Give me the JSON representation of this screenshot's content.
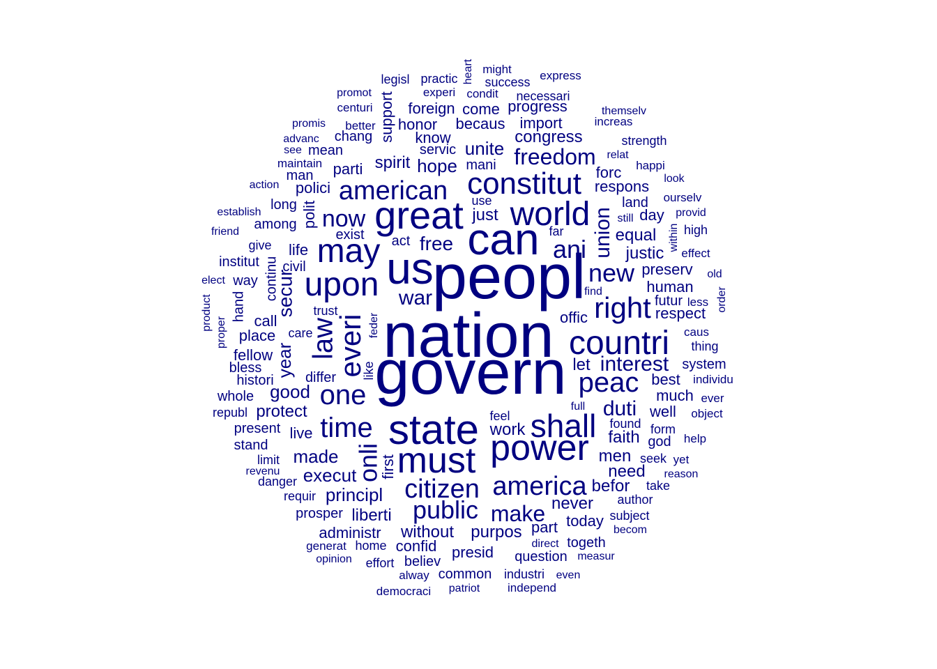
{
  "color": "#000080",
  "words": [
    {
      "text": "nation",
      "size": 90
    },
    {
      "text": "govern",
      "size": 90
    },
    {
      "text": "peopl",
      "size": 90
    },
    {
      "text": "us",
      "size": 64
    },
    {
      "text": "can",
      "size": 64
    },
    {
      "text": "state",
      "size": 60
    },
    {
      "text": "great",
      "size": 56
    },
    {
      "text": "must",
      "size": 52
    },
    {
      "text": "power",
      "size": 52
    },
    {
      "text": "world",
      "size": 48
    },
    {
      "text": "may",
      "size": 48
    },
    {
      "text": "upon",
      "size": 48
    },
    {
      "text": "countri",
      "size": 48
    },
    {
      "text": "shall",
      "size": 46
    },
    {
      "text": "constitut",
      "size": 44
    },
    {
      "text": "everi",
      "size": 42
    },
    {
      "text": "right",
      "size": 42
    },
    {
      "text": "law",
      "size": 40
    },
    {
      "text": "time",
      "size": 40
    },
    {
      "text": "one",
      "size": 40
    },
    {
      "text": "peac",
      "size": 40
    },
    {
      "text": "american",
      "size": 38
    },
    {
      "text": "citizen",
      "size": 38
    },
    {
      "text": "america",
      "size": 38
    },
    {
      "text": "onli",
      "size": 36
    },
    {
      "text": "ani",
      "size": 36
    },
    {
      "text": "public",
      "size": 36
    },
    {
      "text": "new",
      "size": 36
    },
    {
      "text": "now",
      "size": 34
    },
    {
      "text": "make",
      "size": 32
    },
    {
      "text": "freedom",
      "size": 32
    },
    {
      "text": "union",
      "size": 30
    },
    {
      "text": "duti",
      "size": 30
    },
    {
      "text": "war",
      "size": 30
    },
    {
      "text": "interest",
      "size": 30
    },
    {
      "text": "free",
      "size": 28
    },
    {
      "text": "secur",
      "size": 28
    },
    {
      "text": "year",
      "size": 26
    },
    {
      "text": "unite",
      "size": 26
    },
    {
      "text": "hope",
      "size": 26
    },
    {
      "text": "made",
      "size": 26
    },
    {
      "text": "execut",
      "size": 26
    },
    {
      "text": "principl",
      "size": 26
    },
    {
      "text": "good",
      "size": 26
    },
    {
      "text": "protect",
      "size": 24
    },
    {
      "text": "spirit",
      "size": 24
    },
    {
      "text": "just",
      "size": 24
    },
    {
      "text": "faith",
      "size": 24
    },
    {
      "text": "liberti",
      "size": 24
    },
    {
      "text": "without",
      "size": 24
    },
    {
      "text": "purpos",
      "size": 24
    },
    {
      "text": "justic",
      "size": 24
    },
    {
      "text": "equal",
      "size": 24
    },
    {
      "text": "never",
      "size": 24
    },
    {
      "text": "congress",
      "size": 24
    },
    {
      "text": "work",
      "size": 24
    },
    {
      "text": "need",
      "size": 24
    },
    {
      "text": "befor",
      "size": 24
    },
    {
      "text": "men",
      "size": 24
    },
    {
      "text": "let",
      "size": 24
    },
    {
      "text": "know",
      "size": 22
    },
    {
      "text": "becaus",
      "size": 22
    },
    {
      "text": "import",
      "size": 22
    },
    {
      "text": "honor",
      "size": 22
    },
    {
      "text": "foreign",
      "size": 22
    },
    {
      "text": "come",
      "size": 22
    },
    {
      "text": "progress",
      "size": 22
    },
    {
      "text": "support",
      "size": 22
    },
    {
      "text": "parti",
      "size": 22
    },
    {
      "text": "polici",
      "size": 22
    },
    {
      "text": "polit",
      "size": 22
    },
    {
      "text": "life",
      "size": 22
    },
    {
      "text": "live",
      "size": 22
    },
    {
      "text": "place",
      "size": 22
    },
    {
      "text": "call",
      "size": 22
    },
    {
      "text": "fellow",
      "size": 22
    },
    {
      "text": "first",
      "size": 22
    },
    {
      "text": "today",
      "size": 22
    },
    {
      "text": "part",
      "size": 22
    },
    {
      "text": "confid",
      "size": 22
    },
    {
      "text": "presid",
      "size": 22
    },
    {
      "text": "administr",
      "size": 22
    },
    {
      "text": "human",
      "size": 22
    },
    {
      "text": "preserv",
      "size": 22
    },
    {
      "text": "respect",
      "size": 22
    },
    {
      "text": "well",
      "size": 22
    },
    {
      "text": "respons",
      "size": 22
    },
    {
      "text": "forc",
      "size": 22
    },
    {
      "text": "day",
      "size": 22
    },
    {
      "text": "best",
      "size": 22
    },
    {
      "text": "much",
      "size": 22
    },
    {
      "text": "offic",
      "size": 22
    },
    {
      "text": "long",
      "size": 20
    },
    {
      "text": "among",
      "size": 20
    },
    {
      "text": "mani",
      "size": 20
    },
    {
      "text": "chang",
      "size": 20
    },
    {
      "text": "mean",
      "size": 20
    },
    {
      "text": "man",
      "size": 20
    },
    {
      "text": "servic",
      "size": 20
    },
    {
      "text": "act",
      "size": 20
    },
    {
      "text": "exist",
      "size": 20
    },
    {
      "text": "civil",
      "size": 20
    },
    {
      "text": "continu",
      "size": 20
    },
    {
      "text": "institut",
      "size": 20
    },
    {
      "text": "give",
      "size": 18
    },
    {
      "text": "way",
      "size": 20
    },
    {
      "text": "hand",
      "size": 20
    },
    {
      "text": "histori",
      "size": 20
    },
    {
      "text": "bless",
      "size": 20
    },
    {
      "text": "differ",
      "size": 20
    },
    {
      "text": "whole",
      "size": 20
    },
    {
      "text": "republ",
      "size": 18
    },
    {
      "text": "present",
      "size": 20
    },
    {
      "text": "stand",
      "size": 20
    },
    {
      "text": "limit",
      "size": 18
    },
    {
      "text": "danger",
      "size": 18
    },
    {
      "text": "requir",
      "size": 18
    },
    {
      "text": "prosper",
      "size": 20
    },
    {
      "text": "believ",
      "size": 20
    },
    {
      "text": "question",
      "size": 20
    },
    {
      "text": "togeth",
      "size": 20
    },
    {
      "text": "common",
      "size": 20
    },
    {
      "text": "industri",
      "size": 18
    },
    {
      "text": "home",
      "size": 18
    },
    {
      "text": "effort",
      "size": 18
    },
    {
      "text": "system",
      "size": 20
    },
    {
      "text": "futur",
      "size": 20
    },
    {
      "text": "author",
      "size": 18
    },
    {
      "text": "subject",
      "size": 18
    },
    {
      "text": "use",
      "size": 18
    },
    {
      "text": "far",
      "size": 18
    },
    {
      "text": "land",
      "size": 20
    },
    {
      "text": "found",
      "size": 18
    },
    {
      "text": "form",
      "size": 18
    },
    {
      "text": "god",
      "size": 20
    },
    {
      "text": "seek",
      "size": 18
    },
    {
      "text": "take",
      "size": 18
    },
    {
      "text": "like",
      "size": 18
    },
    {
      "text": "feder",
      "size": 16
    },
    {
      "text": "trust",
      "size": 18
    },
    {
      "text": "care",
      "size": 18
    },
    {
      "text": "feel",
      "size": 18
    },
    {
      "text": "full",
      "size": 16
    },
    {
      "text": "within",
      "size": 16
    },
    {
      "text": "legisl",
      "size": 18
    },
    {
      "text": "practic",
      "size": 18
    },
    {
      "text": "heart",
      "size": 16
    },
    {
      "text": "might",
      "size": 17
    },
    {
      "text": "success",
      "size": 18
    },
    {
      "text": "express",
      "size": 17
    },
    {
      "text": "promot",
      "size": 16
    },
    {
      "text": "experi",
      "size": 17
    },
    {
      "text": "condit",
      "size": 17
    },
    {
      "text": "necessari",
      "size": 18
    },
    {
      "text": "centuri",
      "size": 17
    },
    {
      "text": "themselv",
      "size": 16
    },
    {
      "text": "increas",
      "size": 17
    },
    {
      "text": "promis",
      "size": 16
    },
    {
      "text": "better",
      "size": 17
    },
    {
      "text": "advanc",
      "size": 16
    },
    {
      "text": "see",
      "size": 16
    },
    {
      "text": "strength",
      "size": 18
    },
    {
      "text": "relat",
      "size": 16
    },
    {
      "text": "maintain",
      "size": 17
    },
    {
      "text": "happi",
      "size": 17
    },
    {
      "text": "look",
      "size": 16
    },
    {
      "text": "action",
      "size": 16
    },
    {
      "text": "ourselv",
      "size": 17
    },
    {
      "text": "establish",
      "size": 16
    },
    {
      "text": "provid",
      "size": 16
    },
    {
      "text": "still",
      "size": 16
    },
    {
      "text": "friend",
      "size": 16
    },
    {
      "text": "high",
      "size": 18
    },
    {
      "text": "effect",
      "size": 17
    },
    {
      "text": "old",
      "size": 16
    },
    {
      "text": "elect",
      "size": 16
    },
    {
      "text": "find",
      "size": 16
    },
    {
      "text": "less",
      "size": 17
    },
    {
      "text": "order",
      "size": 16
    },
    {
      "text": "product",
      "size": 16
    },
    {
      "text": "proper",
      "size": 16
    },
    {
      "text": "caus",
      "size": 17
    },
    {
      "text": "thing",
      "size": 18
    },
    {
      "text": "individu",
      "size": 17
    },
    {
      "text": "ever",
      "size": 17
    },
    {
      "text": "object",
      "size": 17
    },
    {
      "text": "help",
      "size": 17
    },
    {
      "text": "yet",
      "size": 17
    },
    {
      "text": "reason",
      "size": 16
    },
    {
      "text": "revenu",
      "size": 16
    },
    {
      "text": "generat",
      "size": 17
    },
    {
      "text": "opinion",
      "size": 16
    },
    {
      "text": "direct",
      "size": 16
    },
    {
      "text": "becom",
      "size": 16
    },
    {
      "text": "measur",
      "size": 16
    },
    {
      "text": "even",
      "size": 16
    },
    {
      "text": "alway",
      "size": 17
    },
    {
      "text": "patriot",
      "size": 16
    },
    {
      "text": "independ",
      "size": 17
    },
    {
      "text": "democraci",
      "size": 17
    }
  ]
}
